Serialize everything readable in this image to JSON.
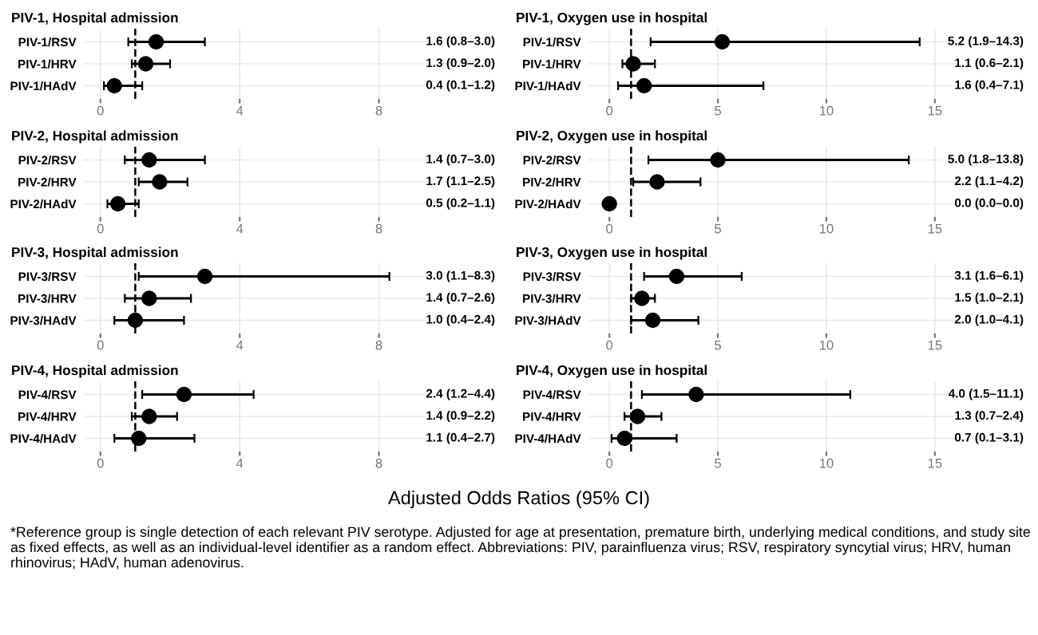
{
  "chart_data": [
    {
      "type": "scatter",
      "orientation": "horizontal",
      "title": "PIV-1, Hospital admission",
      "categories": [
        "PIV-1/RSV",
        "PIV-1/HRV",
        "PIV-1/HAdV"
      ],
      "values": [
        1.6,
        1.3,
        0.4
      ],
      "errors": [
        [
          0.8,
          3.0
        ],
        [
          0.9,
          2.0
        ],
        [
          0.1,
          1.2
        ]
      ],
      "value_labels": [
        "1.6 (0.8–3.0)",
        "1.3 (0.9–2.0)",
        "0.4 (0.1–1.2)"
      ],
      "color": "#000000",
      "marker": "circle",
      "xlim": [
        -0.5,
        9.5
      ],
      "xticks": [
        0,
        4,
        8
      ],
      "ref_lines": [
        {
          "axis": "x",
          "value": 1,
          "line_style": "dashed",
          "color": "#000000"
        }
      ],
      "grid": true
    },
    {
      "type": "scatter",
      "orientation": "horizontal",
      "title": "PIV-1, Oxygen use in hospital",
      "categories": [
        "PIV-1/RSV",
        "PIV-1/HRV",
        "PIV-1/HAdV"
      ],
      "values": [
        5.2,
        1.1,
        1.6
      ],
      "errors": [
        [
          1.9,
          14.3
        ],
        [
          0.6,
          2.1
        ],
        [
          0.4,
          7.1
        ]
      ],
      "value_labels": [
        "5.2 (1.9–14.3)",
        "1.1 (0.6–2.1)",
        "1.6 (0.4–7.1)"
      ],
      "color": "#000000",
      "marker": "circle",
      "xlim": [
        -1,
        16
      ],
      "xticks": [
        0,
        5,
        10,
        15
      ],
      "ref_lines": [
        {
          "axis": "x",
          "value": 1,
          "line_style": "dashed",
          "color": "#000000"
        }
      ],
      "grid": true
    },
    {
      "type": "scatter",
      "orientation": "horizontal",
      "title": "PIV-2, Hospital admission",
      "categories": [
        "PIV-2/RSV",
        "PIV-2/HRV",
        "PIV-2/HAdV"
      ],
      "values": [
        1.4,
        1.7,
        0.5
      ],
      "errors": [
        [
          0.7,
          3.0
        ],
        [
          1.1,
          2.5
        ],
        [
          0.2,
          1.1
        ]
      ],
      "value_labels": [
        "1.4 (0.7–3.0)",
        "1.7 (1.1–2.5)",
        "0.5 (0.2–1.1)"
      ],
      "color": "#000000",
      "marker": "circle",
      "xlim": [
        -0.5,
        9.5
      ],
      "xticks": [
        0,
        4,
        8
      ],
      "ref_lines": [
        {
          "axis": "x",
          "value": 1,
          "line_style": "dashed",
          "color": "#000000"
        }
      ],
      "grid": true
    },
    {
      "type": "scatter",
      "orientation": "horizontal",
      "title": "PIV-2, Oxygen use in hospital",
      "categories": [
        "PIV-2/RSV",
        "PIV-2/HRV",
        "PIV-2/HAdV"
      ],
      "values": [
        5.0,
        2.2,
        0.0
      ],
      "errors": [
        [
          1.8,
          13.8
        ],
        [
          1.1,
          4.2
        ],
        [
          0.0,
          0.0
        ]
      ],
      "value_labels": [
        "5.0 (1.8–13.8)",
        "2.2 (1.1–4.2)",
        "0.0 (0.0–0.0)"
      ],
      "color": "#000000",
      "marker": "circle",
      "xlim": [
        -1,
        16
      ],
      "xticks": [
        0,
        5,
        10,
        15
      ],
      "ref_lines": [
        {
          "axis": "x",
          "value": 1,
          "line_style": "dashed",
          "color": "#000000"
        }
      ],
      "grid": true
    },
    {
      "type": "scatter",
      "orientation": "horizontal",
      "title": "PIV-3, Hospital admission",
      "categories": [
        "PIV-3/RSV",
        "PIV-3/HRV",
        "PIV-3/HAdV"
      ],
      "values": [
        3.0,
        1.4,
        1.0
      ],
      "errors": [
        [
          1.1,
          8.3
        ],
        [
          0.7,
          2.6
        ],
        [
          0.4,
          2.4
        ]
      ],
      "value_labels": [
        "3.0 (1.1–8.3)",
        "1.4 (0.7–2.6)",
        "1.0 (0.4–2.4)"
      ],
      "color": "#000000",
      "marker": "circle",
      "xlim": [
        -0.5,
        9.5
      ],
      "xticks": [
        0,
        4,
        8
      ],
      "ref_lines": [
        {
          "axis": "x",
          "value": 1,
          "line_style": "dashed",
          "color": "#000000"
        }
      ],
      "grid": true
    },
    {
      "type": "scatter",
      "orientation": "horizontal",
      "title": "PIV-3, Oxygen use in hospital",
      "categories": [
        "PIV-3/RSV",
        "PIV-3/HRV",
        "PIV-3/HAdV"
      ],
      "values": [
        3.1,
        1.5,
        2.0
      ],
      "errors": [
        [
          1.6,
          6.1
        ],
        [
          1.0,
          2.1
        ],
        [
          1.0,
          4.1
        ]
      ],
      "value_labels": [
        "3.1 (1.6–6.1)",
        "1.5 (1.0–2.1)",
        "2.0 (1.0–4.1)"
      ],
      "color": "#000000",
      "marker": "circle",
      "xlim": [
        -1,
        16
      ],
      "xticks": [
        0,
        5,
        10,
        15
      ],
      "ref_lines": [
        {
          "axis": "x",
          "value": 1,
          "line_style": "dashed",
          "color": "#000000"
        }
      ],
      "grid": true
    },
    {
      "type": "scatter",
      "orientation": "horizontal",
      "title": "PIV-4, Hospital admission",
      "categories": [
        "PIV-4/RSV",
        "PIV-4/HRV",
        "PIV-4/HAdV"
      ],
      "values": [
        2.4,
        1.4,
        1.1
      ],
      "errors": [
        [
          1.2,
          4.4
        ],
        [
          0.9,
          2.2
        ],
        [
          0.4,
          2.7
        ]
      ],
      "value_labels": [
        "2.4 (1.2–4.4)",
        "1.4 (0.9–2.2)",
        "1.1 (0.4–2.7)"
      ],
      "color": "#000000",
      "marker": "circle",
      "xlim": [
        -0.5,
        9.5
      ],
      "xticks": [
        0,
        4,
        8
      ],
      "ref_lines": [
        {
          "axis": "x",
          "value": 1,
          "line_style": "dashed",
          "color": "#000000"
        }
      ],
      "grid": true
    },
    {
      "type": "scatter",
      "orientation": "horizontal",
      "title": "PIV-4, Oxygen use in hospital",
      "categories": [
        "PIV-4/RSV",
        "PIV-4/HRV",
        "PIV-4/HAdV"
      ],
      "values": [
        4.0,
        1.3,
        0.7
      ],
      "errors": [
        [
          1.5,
          11.1
        ],
        [
          0.7,
          2.4
        ],
        [
          0.1,
          3.1
        ]
      ],
      "value_labels": [
        "4.0 (1.5–11.1)",
        "1.3 (0.7–2.4)",
        "0.7 (0.1–3.1)"
      ],
      "color": "#000000",
      "marker": "circle",
      "xlim": [
        -1,
        16
      ],
      "xticks": [
        0,
        5,
        10,
        15
      ],
      "ref_lines": [
        {
          "axis": "x",
          "value": 1,
          "line_style": "dashed",
          "color": "#000000"
        }
      ],
      "grid": true,
      "xlabel": "Adjusted Odds Ratios (95% CI)",
      "annotations": [
        "*Reference group is single detection of each relevant PIV serotype. Adjusted for age at presentation, premature birth, underlying medical conditions, and study site as fixed effects, as well as an individual-level identifier as a random effect. Abbreviations: PIV, parainfluenza virus; RSV, respiratory syncytial virus; HRV, human rhinovirus; HAdV, human adenovirus."
      ]
    }
  ]
}
